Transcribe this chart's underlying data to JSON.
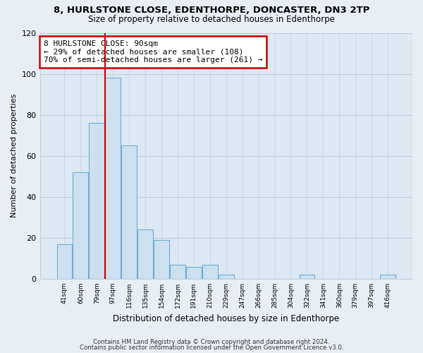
{
  "title": "8, HURLSTONE CLOSE, EDENTHORPE, DONCASTER, DN3 2TP",
  "subtitle": "Size of property relative to detached houses in Edenthorpe",
  "xlabel": "Distribution of detached houses by size in Edenthorpe",
  "ylabel": "Number of detached properties",
  "bar_color": "#cce0f0",
  "bar_edge_color": "#6aafd4",
  "vline_color": "#cc0000",
  "vline_x": 2.5,
  "annotation_line1": "8 HURLSTONE CLOSE: 90sqm",
  "annotation_line2": "← 29% of detached houses are smaller (108)",
  "annotation_line3": "70% of semi-detached houses are larger (261) →",
  "annotation_box_color": "#cc0000",
  "annotation_box_bg": "#ffffff",
  "categories": [
    "41sqm",
    "60sqm",
    "79sqm",
    "97sqm",
    "116sqm",
    "135sqm",
    "154sqm",
    "172sqm",
    "191sqm",
    "210sqm",
    "229sqm",
    "247sqm",
    "266sqm",
    "285sqm",
    "304sqm",
    "322sqm",
    "341sqm",
    "360sqm",
    "379sqm",
    "397sqm",
    "416sqm"
  ],
  "values": [
    17,
    52,
    76,
    98,
    65,
    24,
    19,
    7,
    6,
    7,
    2,
    0,
    0,
    0,
    0,
    2,
    0,
    0,
    0,
    0,
    2
  ],
  "ylim": [
    0,
    120
  ],
  "yticks": [
    0,
    20,
    40,
    60,
    80,
    100,
    120
  ],
  "footnote1": "Contains HM Land Registry data © Crown copyright and database right 2024.",
  "footnote2": "Contains public sector information licensed under the Open Government Licence v3.0.",
  "bg_color": "#e8eef4",
  "plot_bg_color": "#dce8f2",
  "grid_color": "#b8cede"
}
